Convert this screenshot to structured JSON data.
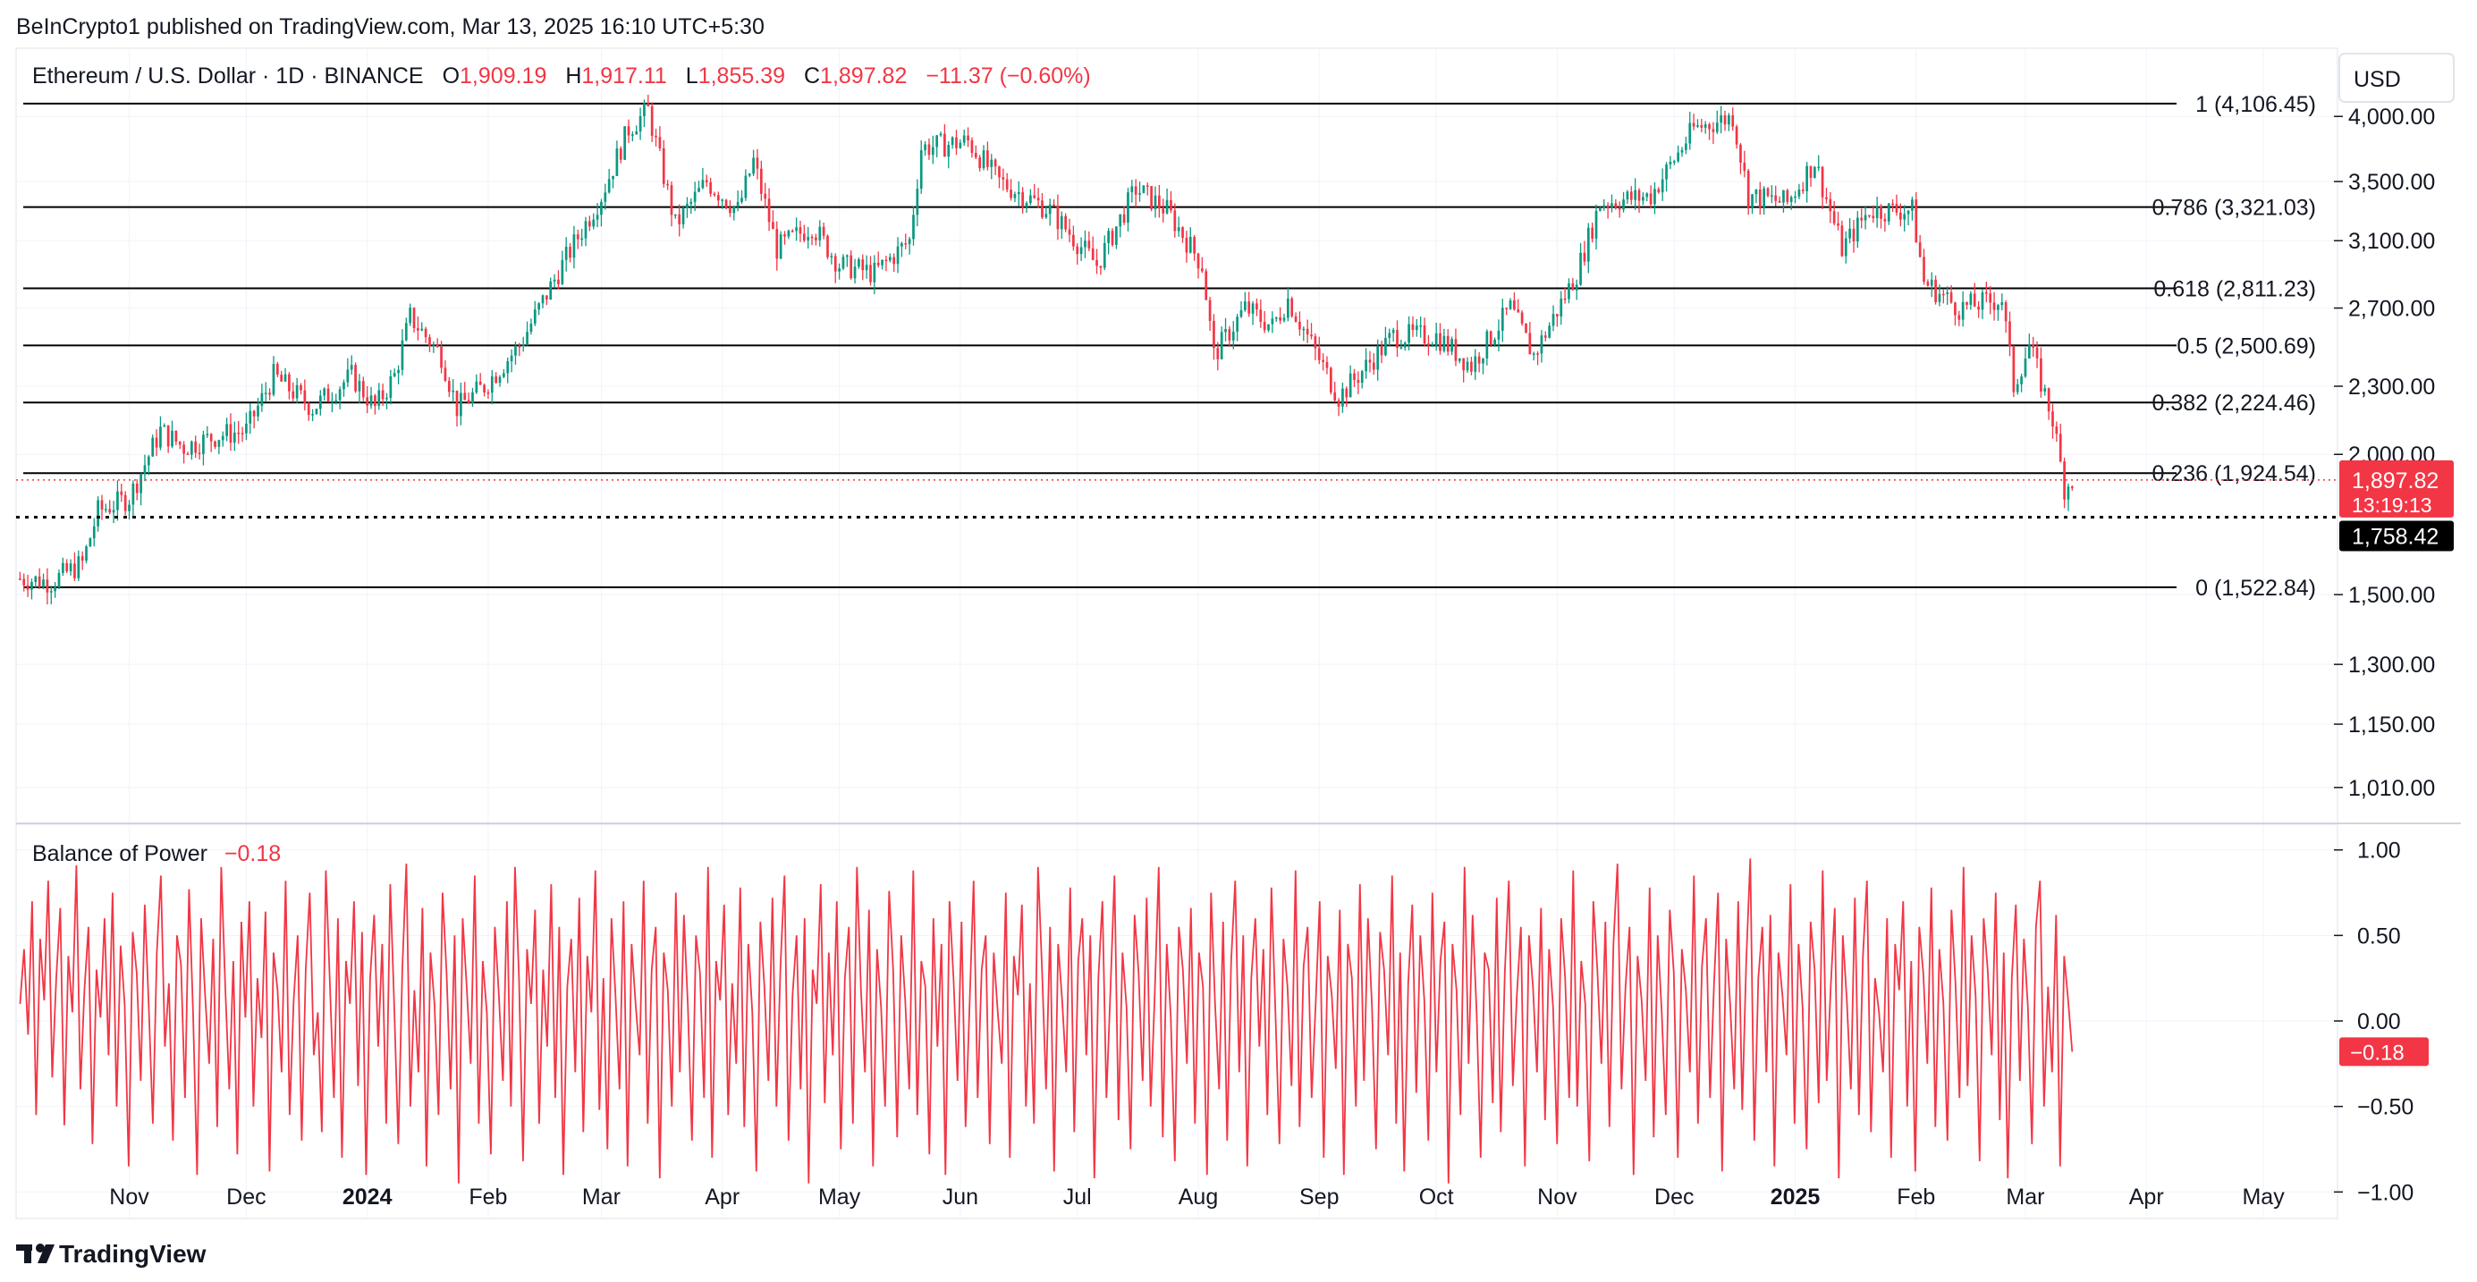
{
  "publish_line": "BeInCrypto1 published on TradingView.com, Mar 13, 2025 16:10 UTC+5:30",
  "currency_button": "USD",
  "symbol": {
    "name": "Ethereum / U.S. Dollar · 1D · BINANCE",
    "o_label": "O",
    "o": "1,909.19",
    "h_label": "H",
    "h": "1,917.11",
    "l_label": "L",
    "l": "1,855.39",
    "c_label": "C",
    "c": "1,897.82",
    "change": "−11.37 (−0.60%)"
  },
  "footer_brand": "TradingView",
  "colors": {
    "up": "#089981",
    "down": "#f23645",
    "fib_line": "#000000",
    "grid": "#f0f3fa",
    "label_black": "#000000"
  },
  "chart_data": [
    {
      "type": "candlestick",
      "title": "Ethereum / U.S. Dollar · 1D · BINANCE",
      "y_scale": "log",
      "ylim": [
        940,
        4600
      ],
      "xlim": [
        "2023-10-03",
        "2025-05-20"
      ],
      "y_ticks": [
        "4,000.00",
        "3,500.00",
        "3,100.00",
        "2,700.00",
        "2,300.00",
        "2,000.00",
        "1,500.00",
        "1,300.00",
        "1,150.00",
        "1,010.00"
      ],
      "y_tick_values": [
        4000,
        3500,
        3100,
        2700,
        2300,
        2000,
        1500,
        1300,
        1150,
        1010
      ],
      "x_ticks": [
        {
          "label": "Nov",
          "date": "2023-11-01",
          "bold": false
        },
        {
          "label": "Dec",
          "date": "2023-12-01",
          "bold": false
        },
        {
          "label": "2024",
          "date": "2024-01-01",
          "bold": true
        },
        {
          "label": "Feb",
          "date": "2024-02-01",
          "bold": false
        },
        {
          "label": "Mar",
          "date": "2024-03-01",
          "bold": false
        },
        {
          "label": "Apr",
          "date": "2024-04-01",
          "bold": false
        },
        {
          "label": "May",
          "date": "2024-05-01",
          "bold": false
        },
        {
          "label": "Jun",
          "date": "2024-06-01",
          "bold": false
        },
        {
          "label": "Jul",
          "date": "2024-07-01",
          "bold": false
        },
        {
          "label": "Aug",
          "date": "2024-08-01",
          "bold": false
        },
        {
          "label": "Sep",
          "date": "2024-09-01",
          "bold": false
        },
        {
          "label": "Oct",
          "date": "2024-10-01",
          "bold": false
        },
        {
          "label": "Nov",
          "date": "2024-11-01",
          "bold": false
        },
        {
          "label": "Dec",
          "date": "2024-12-01",
          "bold": false
        },
        {
          "label": "2025",
          "date": "2025-01-01",
          "bold": true
        },
        {
          "label": "Feb",
          "date": "2025-02-01",
          "bold": false
        },
        {
          "label": "Mar",
          "date": "2025-03-01",
          "bold": false
        },
        {
          "label": "Apr",
          "date": "2025-04-01",
          "bold": false
        },
        {
          "label": "May",
          "date": "2025-05-01",
          "bold": false
        }
      ],
      "price_path": [
        [
          "2023-10-04",
          1550
        ],
        [
          "2023-10-12",
          1540
        ],
        [
          "2023-10-20",
          1600
        ],
        [
          "2023-10-24",
          1780
        ],
        [
          "2023-11-01",
          1830
        ],
        [
          "2023-11-09",
          2100
        ],
        [
          "2023-11-15",
          2030
        ],
        [
          "2023-11-24",
          2080
        ],
        [
          "2023-12-01",
          2100
        ],
        [
          "2023-12-08",
          2350
        ],
        [
          "2023-12-18",
          2200
        ],
        [
          "2023-12-28",
          2350
        ],
        [
          "2024-01-03",
          2200
        ],
        [
          "2024-01-08",
          2350
        ],
        [
          "2024-01-12",
          2650
        ],
        [
          "2024-01-20",
          2450
        ],
        [
          "2024-01-24",
          2200
        ],
        [
          "2024-01-31",
          2300
        ],
        [
          "2024-02-09",
          2500
        ],
        [
          "2024-02-20",
          2950
        ],
        [
          "2024-03-01",
          3400
        ],
        [
          "2024-03-08",
          3900
        ],
        [
          "2024-03-13",
          4050
        ],
        [
          "2024-03-20",
          3200
        ],
        [
          "2024-03-28",
          3500
        ],
        [
          "2024-04-05",
          3300
        ],
        [
          "2024-04-09",
          3650
        ],
        [
          "2024-04-15",
          3050
        ],
        [
          "2024-04-24",
          3200
        ],
        [
          "2024-05-01",
          2950
        ],
        [
          "2024-05-10",
          2900
        ],
        [
          "2024-05-19",
          3100
        ],
        [
          "2024-05-22",
          3750
        ],
        [
          "2024-06-03",
          3800
        ],
        [
          "2024-06-11",
          3500
        ],
        [
          "2024-06-24",
          3300
        ],
        [
          "2024-07-06",
          2950
        ],
        [
          "2024-07-16",
          3450
        ],
        [
          "2024-07-24",
          3300
        ],
        [
          "2024-08-02",
          2950
        ],
        [
          "2024-08-05",
          2450
        ],
        [
          "2024-08-13",
          2700
        ],
        [
          "2024-08-20",
          2600
        ],
        [
          "2024-08-24",
          2750
        ],
        [
          "2024-09-06",
          2250
        ],
        [
          "2024-09-20",
          2550
        ],
        [
          "2024-10-01",
          2550
        ],
        [
          "2024-10-10",
          2400
        ],
        [
          "2024-10-20",
          2700
        ],
        [
          "2024-10-26",
          2450
        ],
        [
          "2024-11-06",
          2900
        ],
        [
          "2024-11-12",
          3350
        ],
        [
          "2024-11-25",
          3400
        ],
        [
          "2024-12-06",
          3900
        ],
        [
          "2024-12-16",
          4000
        ],
        [
          "2024-12-20",
          3400
        ],
        [
          "2024-12-30",
          3350
        ],
        [
          "2025-01-06",
          3650
        ],
        [
          "2025-01-13",
          3050
        ],
        [
          "2025-01-20",
          3300
        ],
        [
          "2025-01-31",
          3300
        ],
        [
          "2025-02-03",
          2850
        ],
        [
          "2025-02-12",
          2700
        ],
        [
          "2025-02-23",
          2750
        ],
        [
          "2025-02-26",
          2300
        ],
        [
          "2025-03-02",
          2500
        ],
        [
          "2025-03-08",
          2150
        ],
        [
          "2025-03-11",
          1870
        ],
        [
          "2025-03-13",
          1897.82
        ]
      ],
      "last_price": "1,897.82",
      "countdown": "13:19:13",
      "marked_low": "1,758.42",
      "fibonacci": [
        {
          "label": "1 (4,106.45)",
          "value": 4106.45
        },
        {
          "label": "0.786 (3,321.03)",
          "value": 3321.03
        },
        {
          "label": "0.618 (2,811.23)",
          "value": 2811.23
        },
        {
          "label": "0.5 (2,500.69)",
          "value": 2500.69
        },
        {
          "label": "0.382 (2,224.46)",
          "value": 2224.46
        },
        {
          "label": "0.236 (1,924.54)",
          "value": 1924.54
        },
        {
          "label": "0 (1,522.84)",
          "value": 1522.84
        }
      ]
    },
    {
      "type": "line",
      "title": "Balance of Power",
      "value_label": "−0.18",
      "ylim": [
        -1.15,
        1.15
      ],
      "y_ticks": [
        "1.00",
        "0.50",
        "0.00",
        "−0.50",
        "−1.00"
      ],
      "y_tick_values": [
        1.0,
        0.5,
        0.0,
        -0.5,
        -1.0
      ],
      "last_value": "−0.18",
      "series": [
        {
          "name": "Balance of Power",
          "color": "#f23645",
          "values": [
            0.1,
            0.42,
            -0.08,
            0.7,
            -0.55,
            0.48,
            0.12,
            0.82,
            -0.33,
            0.25,
            0.66,
            -0.61,
            0.38,
            0.05,
            0.91,
            -0.4,
            0.18,
            0.55,
            -0.72,
            0.3,
            0.02,
            0.6,
            -0.2,
            0.75,
            -0.5,
            0.44,
            0.1,
            -0.85,
            0.52,
            0.28,
            -0.35,
            0.68,
            0.08,
            -0.6,
            0.4,
            0.85,
            -0.15,
            0.22,
            -0.7,
            0.5,
            0.33,
            -0.45,
            0.77,
            0.05,
            -0.9,
            0.6,
            0.15,
            -0.25,
            0.48,
            -0.62,
            0.9,
            0.2,
            -0.4,
            0.35,
            -0.78,
            0.58,
            0.02,
            0.7,
            -0.5,
            0.25,
            -0.1,
            0.64,
            -0.88,
            0.4,
            0.18,
            -0.3,
            0.82,
            -0.55,
            0.12,
            0.5,
            -0.7,
            0.3,
            0.75,
            -0.2,
            0.05,
            -0.65,
            0.88,
            0.22,
            -0.45,
            0.6,
            -0.8,
            0.35,
            0.1,
            0.7,
            -0.38,
            0.52,
            -0.9,
            0.25,
            0.62,
            -0.15,
            0.45,
            -0.6,
            0.8,
            0.08,
            -0.72,
            0.3,
            0.92,
            -0.5,
            0.18,
            -0.3,
            0.66,
            -0.85,
            0.4,
            0.1,
            -0.55,
            0.75,
            0.28,
            -0.4,
            0.5,
            -0.95,
            0.6,
            0.2,
            -0.25,
            0.85,
            -0.6,
            0.35,
            0.05,
            -0.78,
            0.55,
            0.15,
            -0.35,
            0.7,
            -0.5,
            0.9,
            0.25,
            -0.82,
            0.42,
            0.1,
            0.65,
            -0.6,
            0.3,
            -0.15,
            0.8,
            -0.45,
            0.55,
            -0.9,
            0.2,
            0.48,
            -0.3,
            0.72,
            -0.65,
            0.38,
            0.05,
            0.88,
            -0.52,
            0.25,
            -0.75,
            0.6,
            0.15,
            -0.4,
            0.7,
            -0.85,
            0.45,
            0.1,
            -0.2,
            0.82,
            -0.6,
            0.3,
            0.55,
            -0.92,
            0.4,
            0.18,
            -0.5,
            0.75,
            -0.3,
            0.62,
            0.08,
            -0.7,
            0.5,
            0.28,
            -0.45,
            0.9,
            -0.8,
            0.35,
            0.12,
            0.68,
            -0.55,
            0.22,
            -0.25,
            0.78,
            -0.62,
            0.45,
            0.05,
            -0.88,
            0.58,
            0.2,
            -0.35,
            0.72,
            -0.5,
            0.32,
            0.85,
            -0.7,
            0.15,
            0.5,
            -0.4,
            0.6,
            -0.95,
            0.3,
            0.1,
            0.8,
            -0.48,
            0.4,
            -0.2,
            0.7,
            -0.75,
            0.25,
            0.55,
            -0.6,
            0.9,
            0.18,
            -0.3,
            0.65,
            -0.85,
            0.42,
            0.08,
            -0.5,
            0.76,
            0.3,
            -0.68,
            0.5,
            0.12,
            -0.4,
            0.88,
            -0.55,
            0.35,
            0.2,
            -0.78,
            0.6,
            -0.15,
            0.45,
            -0.9,
            0.7,
            0.25,
            -0.35,
            0.58,
            -0.62,
            0.1,
            0.82,
            -0.45,
            0.3,
            0.5,
            -0.72,
            0.4,
            0.05,
            -0.25,
            0.75,
            -0.8,
            0.38,
            0.15,
            0.68,
            -0.5,
            0.22,
            -0.6,
            0.9,
            0.3,
            -0.4,
            0.55,
            -0.88,
            0.45,
            0.12,
            -0.3,
            0.78,
            -0.65,
            0.35,
            0.6,
            -0.2,
            0.5,
            -0.92,
            0.25,
            0.7,
            -0.45,
            0.18,
            0.85,
            -0.58,
            0.4,
            0.08,
            -0.75,
            0.62,
            0.28,
            -0.35,
            0.72,
            -0.5,
            0.15,
            0.9,
            -0.68,
            0.45,
            0.02,
            -0.82,
            0.55,
            0.3,
            -0.25,
            0.66,
            -0.6,
            0.4,
            0.2,
            -0.9,
            0.75,
            0.1,
            -0.4,
            0.58,
            -0.7,
            0.35,
            0.82,
            -0.3,
            0.5,
            -0.85,
            0.25,
            0.6,
            -0.15,
            0.42,
            -0.55,
            0.78,
            0.05,
            -0.72,
            0.48,
            0.2,
            -0.38,
            0.88,
            -0.62,
            0.32,
            0.55,
            -0.45,
            0.1,
            0.7,
            -0.8,
            0.38,
            0.15,
            -0.28,
            0.65,
            -0.9,
            0.45,
            0.25,
            -0.5,
            0.8,
            -0.35,
            0.6,
            0.08,
            -0.75,
            0.52,
            0.3,
            -0.2,
            0.85,
            -0.6,
            0.4,
            -0.88,
            0.22,
            0.68,
            -0.42,
            0.5,
            0.12,
            -0.7,
            0.75,
            -0.3,
            0.35,
            0.58,
            -0.95,
            0.45,
            0.18,
            -0.55,
            0.9,
            -0.25,
            0.62,
            0.05,
            -0.8,
            0.4,
            0.3,
            -0.48,
            0.72,
            -0.65,
            0.28,
            0.82,
            -0.38,
            0.15,
            0.55,
            -0.85,
            0.5,
            0.2,
            -0.3,
            0.66,
            -0.58,
            0.42,
            0.08,
            -0.72,
            0.6,
            0.25,
            -0.45,
            0.88,
            -0.5,
            0.35,
            0.1,
            -0.82,
            0.7,
            0.3,
            -0.25,
            0.58,
            -0.62,
            0.45,
            0.92,
            -0.4,
            0.2,
            0.55,
            -0.9,
            0.38,
            0.12,
            -0.35,
            0.78,
            -0.68,
            0.5,
            0.05,
            -0.55,
            0.65,
            0.28,
            -0.8,
            0.42,
            0.18,
            -0.3,
            0.85,
            -0.6,
            0.32,
            0.6,
            -0.45,
            0.22,
            0.75,
            -0.88,
            0.48,
            0.1,
            -0.4,
            0.7,
            -0.52,
            0.35,
            0.95,
            -0.7,
            0.25,
            0.55,
            -0.3,
            0.62,
            -0.85,
            0.4,
            0.15,
            -0.2,
            0.8,
            -0.6,
            0.45,
            0.08,
            -0.75,
            0.58,
            0.3,
            -0.48,
            0.88,
            -0.35,
            0.2,
            0.66,
            -0.92,
            0.5,
            0.12,
            -0.4,
            0.72,
            -0.55,
            0.38,
            0.82,
            -0.65,
            0.25,
            0.05,
            -0.3,
            0.6,
            -0.8,
            0.45,
            0.18,
            0.7,
            -0.5,
            0.35,
            -0.88,
            0.55,
            0.28,
            -0.25,
            0.78,
            -0.62,
            0.42,
            0.1,
            -0.7,
            0.65,
            0.22,
            -0.45,
            0.9,
            -0.38,
            0.5,
            0.15,
            -0.82,
            0.6,
            0.3,
            -0.2,
            0.75,
            -0.58,
            0.4,
            -0.92,
            0.25,
            0.68,
            -0.35,
            0.48,
            0.08,
            -0.72,
            0.55,
            0.82,
            -0.5,
            0.2,
            -0.3,
            0.62,
            -0.85,
            0.38,
            0.12,
            -0.18
          ]
        }
      ]
    }
  ]
}
